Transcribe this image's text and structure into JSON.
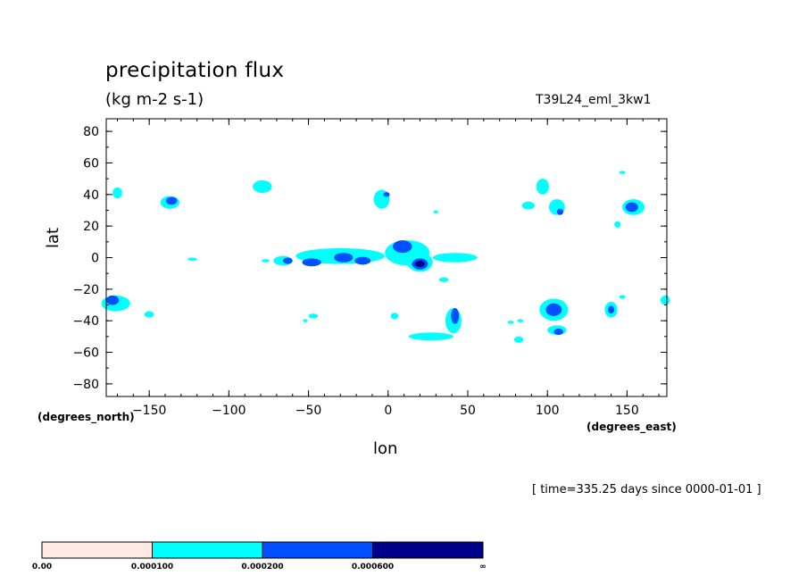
{
  "header": {
    "title": "precipitation flux",
    "units": "(kg m-2 s-1)",
    "run_name": "T39L24_eml_3kw1"
  },
  "footer": {
    "timestamp": "[ time=335.25 days since 0000-01-01 ]"
  },
  "chart_data": {
    "type": "heatmap",
    "title": "precipitation flux",
    "subtitle": "(kg m-2 s-1)",
    "xlabel": "lon",
    "ylabel": "lat",
    "x_units": "(degrees_east)",
    "y_units": "(degrees_north)",
    "xlim": [
      -177,
      175
    ],
    "ylim": [
      -88,
      88
    ],
    "xticks": [
      -150,
      -100,
      -50,
      0,
      50,
      100,
      150
    ],
    "xtick_labels": [
      "−150",
      "−100",
      "−50",
      "0",
      "50",
      "100",
      "150"
    ],
    "yticks": [
      80,
      60,
      40,
      20,
      0,
      -20,
      -40,
      -60,
      -80
    ],
    "ytick_labels": [
      "80",
      "60",
      "40",
      "20",
      "0",
      "−20",
      "−40",
      "−60",
      "−80"
    ],
    "levels": [
      0.0,
      0.0001,
      0.0002,
      0.0006
    ],
    "colorbar": {
      "labels": [
        "0.00",
        "0.000100",
        "0.000200",
        "0.000600",
        "∞"
      ],
      "colors": [
        "#ffe9e6",
        "#00ffff",
        "#0050ff",
        "#00008b"
      ]
    },
    "regions": [
      {
        "lon": -170,
        "lat": 41,
        "rx": 3,
        "ry": 3.5,
        "level": 1
      },
      {
        "lon": -137,
        "lat": 35,
        "rx": 6,
        "ry": 4,
        "level": 1
      },
      {
        "lon": -136,
        "lat": 36,
        "rx": 3.5,
        "ry": 2.5,
        "level": 2
      },
      {
        "lon": -79,
        "lat": 45,
        "rx": 6,
        "ry": 4,
        "level": 1
      },
      {
        "lon": -123,
        "lat": -1,
        "rx": 3,
        "ry": 1,
        "level": 1
      },
      {
        "lon": -77,
        "lat": -2,
        "rx": 2.5,
        "ry": 1,
        "level": 1
      },
      {
        "lon": -66,
        "lat": -2,
        "rx": 6,
        "ry": 3,
        "level": 1
      },
      {
        "lon": -63,
        "lat": -2,
        "rx": 3,
        "ry": 2,
        "level": 2
      },
      {
        "lon": -30,
        "lat": 1,
        "rx": 28,
        "ry": 5,
        "level": 1
      },
      {
        "lon": -48,
        "lat": -3,
        "rx": 6,
        "ry": 2.5,
        "level": 2
      },
      {
        "lon": -28,
        "lat": 0,
        "rx": 6,
        "ry": 3,
        "level": 2
      },
      {
        "lon": -16,
        "lat": -2,
        "rx": 5,
        "ry": 2.5,
        "level": 2
      },
      {
        "lon": 12,
        "lat": 3,
        "rx": 14,
        "ry": 8,
        "level": 1
      },
      {
        "lon": 9,
        "lat": 7,
        "rx": 6,
        "ry": 4,
        "level": 2
      },
      {
        "lon": 20,
        "lat": -3,
        "rx": 8,
        "ry": 6,
        "level": 1
      },
      {
        "lon": 20,
        "lat": -4,
        "rx": 5,
        "ry": 3.5,
        "level": 2
      },
      {
        "lon": 20,
        "lat": -4,
        "rx": 3,
        "ry": 2,
        "level": 3
      },
      {
        "lon": 42,
        "lat": 0,
        "rx": 14,
        "ry": 3,
        "level": 1
      },
      {
        "lon": 35,
        "lat": -14,
        "rx": 3,
        "ry": 1.5,
        "level": 1
      },
      {
        "lon": -4,
        "lat": 37,
        "rx": 5,
        "ry": 6,
        "level": 1
      },
      {
        "lon": -1,
        "lat": 40,
        "rx": 2,
        "ry": 1.5,
        "level": 2
      },
      {
        "lon": 41,
        "lat": -40,
        "rx": 5,
        "ry": 8,
        "level": 1
      },
      {
        "lon": 42,
        "lat": -37,
        "rx": 2.5,
        "ry": 5,
        "level": 2
      },
      {
        "lon": 27,
        "lat": -50,
        "rx": 14,
        "ry": 2.5,
        "level": 1
      },
      {
        "lon": 4,
        "lat": -37,
        "rx": 2.5,
        "ry": 2,
        "level": 1
      },
      {
        "lon": -47,
        "lat": -37,
        "rx": 3,
        "ry": 1.5,
        "level": 1
      },
      {
        "lon": -52,
        "lat": -40,
        "rx": 1.5,
        "ry": 1,
        "level": 1
      },
      {
        "lon": -171,
        "lat": -29,
        "rx": 9,
        "ry": 5,
        "level": 1
      },
      {
        "lon": -173,
        "lat": -27,
        "rx": 4,
        "ry": 3,
        "level": 2
      },
      {
        "lon": -150,
        "lat": -36,
        "rx": 3,
        "ry": 2,
        "level": 1
      },
      {
        "lon": 97,
        "lat": 45,
        "rx": 4,
        "ry": 5,
        "level": 1
      },
      {
        "lon": 106,
        "lat": 32,
        "rx": 5,
        "ry": 5,
        "level": 1
      },
      {
        "lon": 108,
        "lat": 29,
        "rx": 2,
        "ry": 2,
        "level": 2
      },
      {
        "lon": 88,
        "lat": 33,
        "rx": 4,
        "ry": 2.5,
        "level": 1
      },
      {
        "lon": 154,
        "lat": 32,
        "rx": 7,
        "ry": 5,
        "level": 1
      },
      {
        "lon": 153,
        "lat": 32,
        "rx": 4,
        "ry": 3,
        "level": 2
      },
      {
        "lon": 144,
        "lat": 21,
        "rx": 2,
        "ry": 2,
        "level": 1
      },
      {
        "lon": 147,
        "lat": 54,
        "rx": 2,
        "ry": 1,
        "level": 1
      },
      {
        "lon": 104,
        "lat": -33,
        "rx": 9,
        "ry": 7,
        "level": 1
      },
      {
        "lon": 104,
        "lat": -33,
        "rx": 5,
        "ry": 4,
        "level": 2
      },
      {
        "lon": 106,
        "lat": -46,
        "rx": 6,
        "ry": 3,
        "level": 1
      },
      {
        "lon": 107,
        "lat": -47,
        "rx": 3,
        "ry": 2,
        "level": 2
      },
      {
        "lon": 140,
        "lat": -33,
        "rx": 4,
        "ry": 5,
        "level": 1
      },
      {
        "lon": 140,
        "lat": -33,
        "rx": 2,
        "ry": 2.5,
        "level": 2
      },
      {
        "lon": 174,
        "lat": -27,
        "rx": 3,
        "ry": 3,
        "level": 1
      },
      {
        "lon": 82,
        "lat": -52,
        "rx": 3,
        "ry": 2,
        "level": 1
      },
      {
        "lon": 83,
        "lat": -40,
        "rx": 2,
        "ry": 1,
        "level": 1
      },
      {
        "lon": 30,
        "lat": 29,
        "rx": 1.5,
        "ry": 1,
        "level": 1
      },
      {
        "lon": 147,
        "lat": -25,
        "rx": 2,
        "ry": 1.2,
        "level": 1
      },
      {
        "lon": 77,
        "lat": -41,
        "rx": 2,
        "ry": 1,
        "level": 1
      }
    ]
  }
}
